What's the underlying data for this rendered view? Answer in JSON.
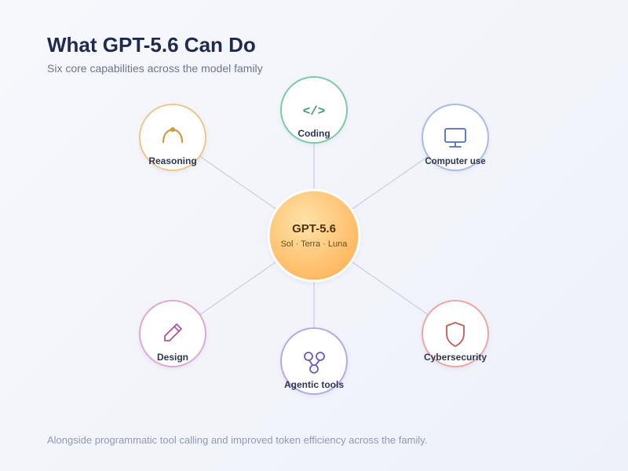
{
  "header": {
    "title": "What GPT-5.6 Can Do",
    "subtitle": "Six core capabilities across the model family"
  },
  "center": {
    "title": "GPT-5.6",
    "subtitle": "Sol · Terra · Luna",
    "color": "#ffc266"
  },
  "capabilities": [
    {
      "label": "Coding",
      "icon": "code-icon",
      "color": "#7fcaa3",
      "icon_color": "#3e9c6c"
    },
    {
      "label": "Reasoning",
      "icon": "arc-icon",
      "color": "#efc78c",
      "icon_color": "#d49a3c"
    },
    {
      "label": "Computer use",
      "icon": "monitor-icon",
      "color": "#a8bde3",
      "icon_color": "#4f6fb8"
    },
    {
      "label": "Design",
      "icon": "pencil-icon",
      "color": "#dfa8d2",
      "icon_color": "#b0559b"
    },
    {
      "label": "Agentic tools",
      "icon": "branch-icon",
      "color": "#b6a8e3",
      "icon_color": "#6b5bb8"
    },
    {
      "label": "Cybersecurity",
      "icon": "shield-icon",
      "color": "#eba7a0",
      "icon_color": "#c75a52"
    }
  ],
  "footer": {
    "note": "Alongside programmatic tool calling and improved token efficiency across the family."
  }
}
